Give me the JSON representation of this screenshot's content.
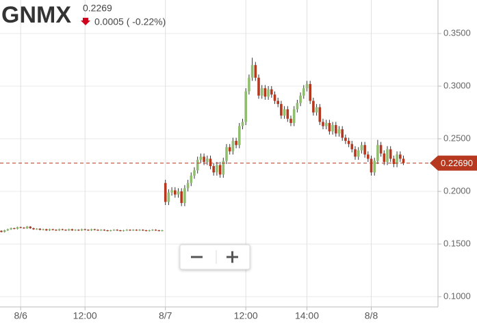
{
  "chart_data": {
    "type": "candlestick",
    "title": "GNMX",
    "price_text": "0.2269",
    "change_text": "0.0005 ( -0.22%)",
    "categories": [
      null,
      null,
      null,
      null,
      null,
      null,
      "8/6",
      null,
      null,
      null,
      null,
      null,
      null,
      null,
      null,
      null,
      null,
      null,
      null,
      null,
      null,
      null,
      null,
      null,
      null,
      null,
      "12:00",
      null,
      null,
      null,
      null,
      null,
      null,
      null,
      null,
      null,
      null,
      null,
      null,
      null,
      null,
      null,
      null,
      null,
      null,
      null,
      null,
      null,
      null,
      null,
      null,
      "8/7",
      null,
      null,
      null,
      null,
      null,
      null,
      null,
      null,
      null,
      null,
      null,
      null,
      null,
      null,
      null,
      null,
      null,
      null,
      null,
      null,
      null,
      null,
      null,
      null,
      "12:00",
      null,
      null,
      null,
      null,
      null,
      null,
      null,
      null,
      null,
      null,
      null,
      null,
      null,
      null,
      null,
      null,
      null,
      null,
      "14:00",
      null,
      null,
      null,
      null,
      null,
      null,
      null,
      null,
      null,
      null,
      null,
      null,
      null,
      null,
      null,
      null,
      null,
      null,
      null,
      "8/8",
      null,
      null,
      null,
      null,
      null,
      null,
      null,
      null,
      null,
      null
    ],
    "open": [
      0.1625,
      0.1615,
      0.163,
      0.164,
      0.165,
      0.1645,
      0.166,
      0.1655,
      0.165,
      0.1665,
      0.165,
      0.164,
      0.1645,
      0.1635,
      0.164,
      0.163,
      0.164,
      0.1635,
      0.163,
      0.164,
      0.1635,
      0.163,
      0.164,
      0.163,
      0.1635,
      0.163,
      0.164,
      0.1635,
      0.163,
      0.164,
      0.1635,
      0.163,
      0.1635,
      0.163,
      0.1625,
      0.163,
      0.1635,
      0.163,
      0.1625,
      0.163,
      0.1635,
      0.163,
      0.1635,
      0.163,
      0.1635,
      0.163,
      0.1625,
      0.163,
      0.1635,
      0.163,
      0.1625,
      0.208,
      0.19,
      0.199,
      0.201,
      0.197,
      0.2,
      0.189,
      0.203,
      0.208,
      0.215,
      0.22,
      0.23,
      0.233,
      0.228,
      0.231,
      0.224,
      0.218,
      0.225,
      0.216,
      0.229,
      0.242,
      0.238,
      0.248,
      0.244,
      0.262,
      0.266,
      0.295,
      0.308,
      0.32,
      0.308,
      0.291,
      0.298,
      0.29,
      0.297,
      0.292,
      0.286,
      0.283,
      0.272,
      0.278,
      0.269,
      0.265,
      0.278,
      0.284,
      0.291,
      0.298,
      0.302,
      0.286,
      0.275,
      0.28,
      0.266,
      0.262,
      0.265,
      0.257,
      0.263,
      0.255,
      0.259,
      0.251,
      0.248,
      0.245,
      0.24,
      0.233,
      0.239,
      0.244,
      0.235,
      0.231,
      0.218,
      0.229,
      0.244,
      0.236,
      0.228,
      0.24,
      0.231,
      0.226,
      0.235,
      0.231
    ],
    "high": [
      0.163,
      0.1635,
      0.1645,
      0.1655,
      0.1655,
      0.1665,
      0.1665,
      0.166,
      0.167,
      0.167,
      0.1655,
      0.165,
      0.165,
      0.1645,
      0.1645,
      0.1645,
      0.1645,
      0.164,
      0.1645,
      0.1645,
      0.164,
      0.1645,
      0.1645,
      0.164,
      0.164,
      0.1645,
      0.1645,
      0.164,
      0.1645,
      0.1645,
      0.164,
      0.164,
      0.164,
      0.1635,
      0.1635,
      0.164,
      0.164,
      0.1635,
      0.1635,
      0.164,
      0.164,
      0.164,
      0.164,
      0.164,
      0.164,
      0.1635,
      0.1635,
      0.164,
      0.164,
      0.1635,
      0.1635,
      0.211,
      0.202,
      0.204,
      0.204,
      0.203,
      0.203,
      0.206,
      0.211,
      0.218,
      0.223,
      0.233,
      0.236,
      0.236,
      0.234,
      0.234,
      0.227,
      0.228,
      0.228,
      0.232,
      0.245,
      0.245,
      0.251,
      0.251,
      0.265,
      0.269,
      0.298,
      0.311,
      0.327,
      0.323,
      0.311,
      0.301,
      0.301,
      0.3,
      0.3,
      0.295,
      0.289,
      0.286,
      0.281,
      0.281,
      0.272,
      0.281,
      0.287,
      0.294,
      0.301,
      0.305,
      0.305,
      0.289,
      0.283,
      0.283,
      0.269,
      0.268,
      0.268,
      0.266,
      0.266,
      0.262,
      0.262,
      0.254,
      0.251,
      0.248,
      0.243,
      0.242,
      0.247,
      0.247,
      0.238,
      0.234,
      0.232,
      0.249,
      0.247,
      0.239,
      0.243,
      0.243,
      0.234,
      0.238,
      0.238,
      0.234
    ],
    "low": [
      0.161,
      0.161,
      0.1625,
      0.1635,
      0.164,
      0.164,
      0.165,
      0.1645,
      0.1645,
      0.1645,
      0.1635,
      0.1635,
      0.163,
      0.163,
      0.1625,
      0.1625,
      0.163,
      0.1625,
      0.1625,
      0.163,
      0.1625,
      0.1625,
      0.1625,
      0.1625,
      0.1625,
      0.1625,
      0.163,
      0.1625,
      0.1625,
      0.163,
      0.1625,
      0.1625,
      0.1625,
      0.162,
      0.162,
      0.1625,
      0.1625,
      0.162,
      0.162,
      0.1625,
      0.1625,
      0.1625,
      0.1625,
      0.1625,
      0.1625,
      0.162,
      0.162,
      0.1625,
      0.1625,
      0.162,
      0.162,
      0.187,
      0.187,
      0.196,
      0.194,
      0.194,
      0.186,
      0.186,
      0.2,
      0.205,
      0.212,
      0.217,
      0.227,
      0.225,
      0.225,
      0.221,
      0.215,
      0.215,
      0.213,
      0.213,
      0.226,
      0.235,
      0.235,
      0.241,
      0.241,
      0.259,
      0.263,
      0.292,
      0.305,
      0.305,
      0.288,
      0.288,
      0.287,
      0.287,
      0.289,
      0.283,
      0.28,
      0.269,
      0.269,
      0.266,
      0.262,
      0.262,
      0.275,
      0.281,
      0.288,
      0.295,
      0.283,
      0.272,
      0.272,
      0.263,
      0.259,
      0.259,
      0.254,
      0.254,
      0.252,
      0.252,
      0.248,
      0.245,
      0.242,
      0.237,
      0.23,
      0.23,
      0.236,
      0.232,
      0.228,
      0.215,
      0.215,
      0.226,
      0.233,
      0.225,
      0.225,
      0.228,
      0.223,
      0.223,
      0.228,
      0.225
    ],
    "close": [
      0.1615,
      0.163,
      0.164,
      0.165,
      0.1645,
      0.166,
      0.1655,
      0.165,
      0.1665,
      0.165,
      0.164,
      0.1645,
      0.1635,
      0.164,
      0.163,
      0.164,
      0.1635,
      0.163,
      0.164,
      0.1635,
      0.163,
      0.164,
      0.163,
      0.1635,
      0.163,
      0.164,
      0.1635,
      0.163,
      0.164,
      0.1635,
      0.163,
      0.1635,
      0.163,
      0.1625,
      0.163,
      0.1635,
      0.163,
      0.1625,
      0.163,
      0.1635,
      0.163,
      0.1635,
      0.163,
      0.1635,
      0.163,
      0.1625,
      0.163,
      0.1635,
      0.163,
      0.1625,
      0.163,
      0.19,
      0.199,
      0.201,
      0.197,
      0.2,
      0.189,
      0.203,
      0.208,
      0.215,
      0.22,
      0.23,
      0.233,
      0.228,
      0.231,
      0.224,
      0.218,
      0.225,
      0.216,
      0.229,
      0.242,
      0.238,
      0.248,
      0.244,
      0.262,
      0.266,
      0.295,
      0.308,
      0.32,
      0.308,
      0.291,
      0.298,
      0.29,
      0.297,
      0.292,
      0.286,
      0.283,
      0.272,
      0.278,
      0.269,
      0.265,
      0.278,
      0.284,
      0.291,
      0.298,
      0.302,
      0.286,
      0.275,
      0.28,
      0.266,
      0.262,
      0.265,
      0.257,
      0.263,
      0.255,
      0.259,
      0.251,
      0.248,
      0.245,
      0.24,
      0.233,
      0.239,
      0.244,
      0.235,
      0.231,
      0.218,
      0.229,
      0.244,
      0.236,
      0.228,
      0.24,
      0.231,
      0.226,
      0.235,
      0.231,
      0.2269
    ],
    "up_color": "#8fbf6e",
    "down_color": "#b5381f",
    "ylim": [
      0.09,
      0.38
    ],
    "yticks": [
      {
        "value": 0.1,
        "label": "0.1000"
      },
      {
        "value": 0.15,
        "label": "0.1500"
      },
      {
        "value": 0.2,
        "label": "0.2000"
      },
      {
        "value": 0.25,
        "label": "0.2500"
      },
      {
        "value": 0.3,
        "label": "0.3000"
      },
      {
        "value": 0.35,
        "label": "0.3500"
      }
    ],
    "last_price": {
      "value": 0.2269,
      "label": "0.22690"
    },
    "grid": true
  }
}
